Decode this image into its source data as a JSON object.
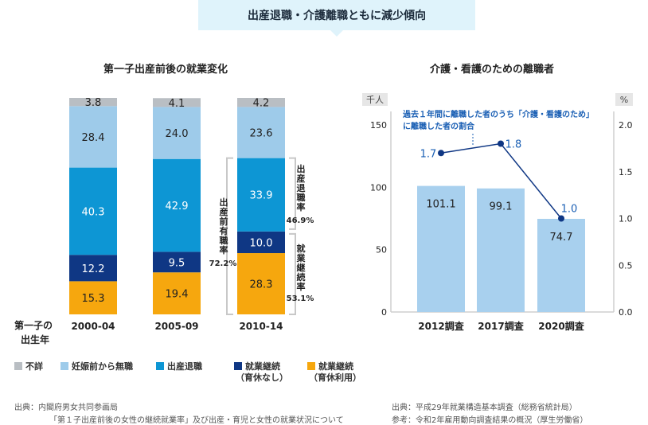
{
  "header": {
    "title": "出産退職・介護離職ともに減少傾向"
  },
  "left_chart": {
    "title": "第一子出産前後の就業変化",
    "row_label_1": "第一子の",
    "row_label_2": "出生年",
    "annotation_left": {
      "label": "出産前有職率",
      "value": "72.2%"
    },
    "annotation_right_top": {
      "label": "出産退職率",
      "value": "46.9%"
    },
    "annotation_right_bottom": {
      "label": "就業継続率",
      "value": "53.1%"
    },
    "legend": [
      {
        "label": "不詳",
        "color": "#b9bec3"
      },
      {
        "label": "妊娠前から無職",
        "color": "#9ecbea"
      },
      {
        "label": "出産退職",
        "color": "#0d96d4"
      },
      {
        "label": "就業継続",
        "label2": "（育休なし）",
        "color": "#0f3784"
      },
      {
        "label": "就業継続",
        "label2": "（育休利用）",
        "color": "#f6a70e"
      }
    ],
    "source_1": "出典：内閣府男女共同参画局",
    "source_2": "「第１子出産前後の女性の継続就業率」及び出産・育児と女性の就業状況について"
  },
  "right_chart": {
    "title": "介護・看護のための離職者",
    "left_unit": "千人",
    "right_unit": "%",
    "line_label_1": "過去１年間に離職した者のうち「介護・看護のため」",
    "line_label_2": "に離職した者の割合",
    "source_1": "出典：平成29年就業構造基本調査（総務省統計局）",
    "source_2": "参考：令和2年雇用動向調査結果の概況（厚生労働省）"
  },
  "chart_data": [
    {
      "type": "bar",
      "stacked": true,
      "title": "第一子出産前後の就業変化",
      "categories": [
        "2000-04",
        "2005-09",
        "2010-14"
      ],
      "ylim": [
        0,
        100
      ],
      "series": [
        {
          "name": "就業継続（育休利用）",
          "values": [
            15.3,
            19.4,
            28.3
          ],
          "color": "#f6a70e"
        },
        {
          "name": "就業継続（育休なし）",
          "values": [
            12.2,
            9.5,
            10.0
          ],
          "color": "#0f3784"
        },
        {
          "name": "出産退職",
          "values": [
            40.3,
            42.9,
            33.9
          ],
          "color": "#0d96d4"
        },
        {
          "name": "妊娠前から無職",
          "values": [
            28.4,
            24.0,
            23.6
          ],
          "color": "#9ecbea"
        },
        {
          "name": "不詳",
          "values": [
            3.8,
            4.1,
            4.2
          ],
          "color": "#b9bec3"
        }
      ],
      "value_labels": [
        [
          "15.3",
          "19.4",
          "28.3"
        ],
        [
          "12.2",
          "9.5",
          "10.0"
        ],
        [
          "40.3",
          "42.9",
          "33.9"
        ],
        [
          "28.4",
          "24.0",
          "23.6"
        ],
        [
          "3.8",
          "4.1",
          "4.2"
        ]
      ]
    },
    {
      "type": "bar",
      "title": "介護・看護のための離職者",
      "categories": [
        "2012調査",
        "2017調査",
        "2020調査"
      ],
      "values": [
        101.1,
        99.1,
        74.7
      ],
      "value_labels": [
        "101.1",
        "99.1",
        "74.7"
      ],
      "ylim": [
        0,
        150
      ],
      "yticks": [
        "0",
        "50",
        "100",
        "150"
      ],
      "bar_color": "#a8d0ee",
      "line": {
        "values": [
          1.7,
          1.8,
          1.0
        ],
        "value_labels": [
          "1.7",
          "1.8",
          "1.0"
        ],
        "ylim": [
          0,
          2.0
        ],
        "yticks": [
          "0.0",
          "0.5",
          "1.0",
          "1.5",
          "2.0"
        ],
        "color": "#0f3784"
      }
    }
  ]
}
